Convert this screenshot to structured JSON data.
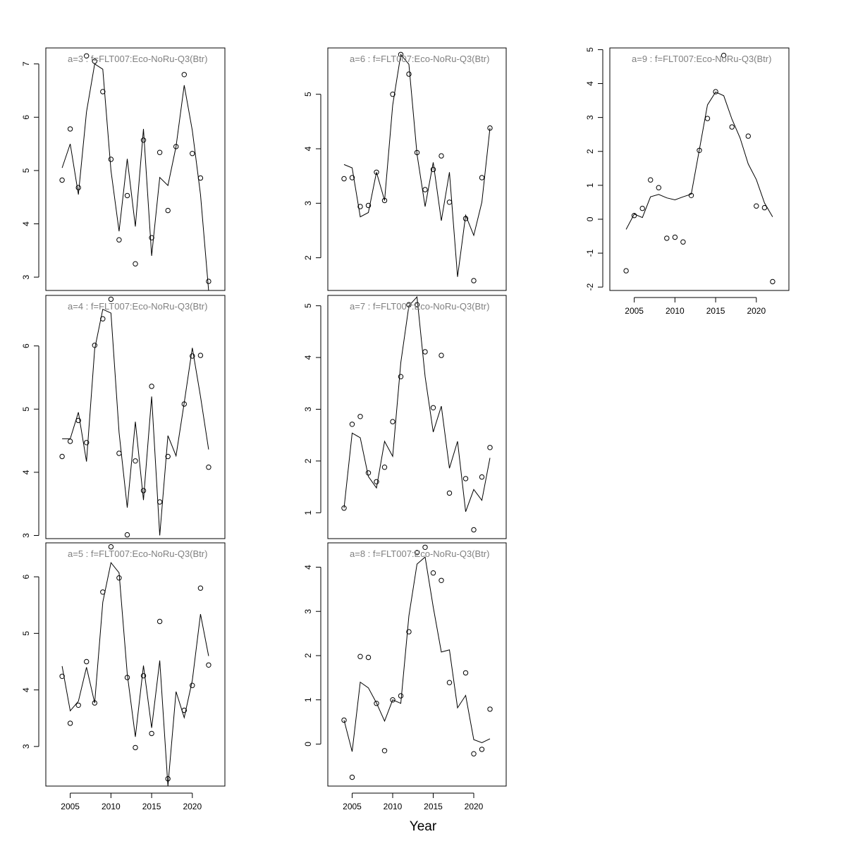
{
  "figure": {
    "xlabel": "Year"
  },
  "chart_data": [
    {
      "type": "scatter",
      "title": "a=3  :  f=FLT007:Eco-NoRu-Q3(Btr)",
      "xlim": [
        2002,
        2024
      ],
      "ylim": [
        2.75,
        7.3
      ],
      "yticks": [
        3,
        4,
        5,
        6,
        7
      ],
      "xticks": [
        2005,
        2010,
        2015,
        2020
      ],
      "show_xticks": false,
      "x": [
        2004,
        2005,
        2006,
        2007,
        2008,
        2009,
        2010,
        2011,
        2012,
        2013,
        2014,
        2015,
        2016,
        2017,
        2018,
        2019,
        2020,
        2021,
        2022
      ],
      "series": [
        {
          "name": "observed",
          "kind": "points",
          "values": [
            4.82,
            5.78,
            4.68,
            7.15,
            7.05,
            6.48,
            5.21,
            3.7,
            4.53,
            3.25,
            5.57,
            3.74,
            5.34,
            4.25,
            5.45,
            6.8,
            5.32,
            4.86,
            2.92
          ]
        },
        {
          "name": "fitted",
          "kind": "line",
          "values": [
            5.05,
            5.5,
            4.55,
            6.1,
            7.0,
            6.9,
            5.0,
            3.86,
            5.22,
            3.95,
            5.78,
            3.4,
            4.87,
            4.72,
            5.45,
            6.6,
            5.75,
            4.55,
            2.75
          ]
        }
      ]
    },
    {
      "type": "scatter",
      "title": "a=4  :  f=FLT007:Eco-NoRu-Q3(Btr)",
      "xlim": [
        2002,
        2024
      ],
      "ylim": [
        2.95,
        6.8
      ],
      "yticks": [
        3,
        4,
        5,
        6
      ],
      "xticks": [
        2005,
        2010,
        2015,
        2020
      ],
      "show_xticks": false,
      "x": [
        2004,
        2005,
        2006,
        2007,
        2008,
        2009,
        2010,
        2011,
        2012,
        2013,
        2014,
        2015,
        2016,
        2017,
        2018,
        2019,
        2020,
        2021,
        2022
      ],
      "series": [
        {
          "name": "observed",
          "kind": "points",
          "values": [
            4.25,
            4.49,
            4.82,
            4.47,
            6.01,
            6.43,
            6.74,
            4.3,
            3.01,
            4.18,
            3.71,
            5.36,
            3.53,
            4.25,
            null,
            5.08,
            5.84,
            5.85,
            4.08
          ]
        },
        {
          "name": "fitted",
          "kind": "line",
          "values": [
            4.53,
            4.53,
            4.95,
            4.17,
            5.95,
            6.58,
            6.52,
            4.63,
            3.44,
            4.8,
            3.56,
            5.2,
            3.0,
            4.58,
            4.26,
            5.1,
            5.97,
            5.2,
            4.36
          ]
        }
      ]
    },
    {
      "type": "scatter",
      "title": "a=5  :  f=FLT007:Eco-NoRu-Q3(Btr)",
      "xlim": [
        2002,
        2024
      ],
      "ylim": [
        2.3,
        6.6
      ],
      "yticks": [
        3,
        4,
        5,
        6
      ],
      "xticks": [
        2005,
        2010,
        2015,
        2020
      ],
      "show_xticks": true,
      "x": [
        2004,
        2005,
        2006,
        2007,
        2008,
        2009,
        2010,
        2011,
        2012,
        2013,
        2014,
        2015,
        2016,
        2017,
        2018,
        2019,
        2020,
        2021,
        2022
      ],
      "series": [
        {
          "name": "observed",
          "kind": "points",
          "values": [
            4.24,
            3.41,
            3.73,
            4.5,
            3.77,
            5.73,
            6.53,
            5.98,
            4.22,
            2.98,
            4.25,
            3.23,
            5.21,
            2.43,
            null,
            3.64,
            4.08,
            5.8,
            4.44
          ]
        },
        {
          "name": "fitted",
          "kind": "line",
          "values": [
            4.42,
            3.63,
            3.8,
            4.4,
            3.77,
            5.55,
            6.25,
            6.07,
            4.28,
            3.17,
            4.43,
            3.33,
            4.52,
            2.3,
            3.97,
            3.51,
            4.17,
            5.34,
            4.6
          ]
        }
      ]
    },
    {
      "type": "scatter",
      "title": "a=6  :  f=FLT007:Eco-NoRu-Q3(Btr)",
      "xlim": [
        2002,
        2024
      ],
      "ylim": [
        1.4,
        5.85
      ],
      "yticks": [
        2,
        3,
        4,
        5
      ],
      "xticks": [
        2005,
        2010,
        2015,
        2020
      ],
      "show_xticks": false,
      "x": [
        2004,
        2005,
        2006,
        2007,
        2008,
        2009,
        2010,
        2011,
        2012,
        2013,
        2014,
        2015,
        2016,
        2017,
        2018,
        2019,
        2020,
        2021,
        2022
      ],
      "series": [
        {
          "name": "observed",
          "kind": "points",
          "values": [
            3.45,
            3.47,
            2.94,
            2.96,
            3.57,
            3.05,
            5.0,
            5.73,
            5.37,
            3.93,
            3.25,
            3.62,
            3.87,
            3.02,
            null,
            2.72,
            1.58,
            3.47,
            4.38
          ]
        },
        {
          "name": "fitted",
          "kind": "line",
          "values": [
            3.71,
            3.65,
            2.75,
            2.83,
            3.57,
            3.05,
            4.8,
            5.73,
            5.55,
            3.9,
            2.94,
            3.75,
            2.68,
            3.57,
            1.65,
            2.78,
            2.41,
            3.02,
            4.38
          ]
        }
      ]
    },
    {
      "type": "scatter",
      "title": "a=7  :  f=FLT007:Eco-NoRu-Q3(Btr)",
      "xlim": [
        2002,
        2024
      ],
      "ylim": [
        0.5,
        5.2
      ],
      "yticks": [
        1,
        2,
        3,
        4,
        5
      ],
      "xticks": [
        2005,
        2010,
        2015,
        2020
      ],
      "show_xticks": false,
      "x": [
        2004,
        2005,
        2006,
        2007,
        2008,
        2009,
        2010,
        2011,
        2012,
        2013,
        2014,
        2015,
        2016,
        2017,
        2018,
        2019,
        2020,
        2021,
        2022
      ],
      "series": [
        {
          "name": "observed",
          "kind": "points",
          "values": [
            1.09,
            2.71,
            2.86,
            1.77,
            1.6,
            1.88,
            2.76,
            3.63,
            5.02,
            5.02,
            4.11,
            3.03,
            4.04,
            1.38,
            null,
            1.66,
            0.67,
            1.69,
            2.26
          ]
        },
        {
          "name": "fitted",
          "kind": "line",
          "values": [
            1.09,
            2.54,
            2.45,
            1.7,
            1.48,
            2.38,
            2.09,
            3.9,
            5.0,
            5.17,
            3.63,
            2.56,
            3.06,
            1.86,
            2.38,
            1.02,
            1.45,
            1.24,
            2.06
          ]
        }
      ]
    },
    {
      "type": "scatter",
      "title": "a=8  :  f=FLT007:Eco-NoRu-Q3(Btr)",
      "xlim": [
        2002,
        2024
      ],
      "ylim": [
        -0.95,
        4.55
      ],
      "yticks": [
        0,
        1,
        2,
        3,
        4
      ],
      "xticks": [
        2005,
        2010,
        2015,
        2020
      ],
      "show_xticks": true,
      "x": [
        2004,
        2005,
        2006,
        2007,
        2008,
        2009,
        2010,
        2011,
        2012,
        2013,
        2014,
        2015,
        2016,
        2017,
        2018,
        2019,
        2020,
        2021,
        2022
      ],
      "series": [
        {
          "name": "observed",
          "kind": "points",
          "values": [
            0.54,
            -0.75,
            1.98,
            1.96,
            0.92,
            -0.15,
            1.0,
            1.09,
            2.54,
            4.33,
            4.45,
            3.87,
            3.7,
            1.39,
            null,
            1.61,
            -0.22,
            -0.12,
            0.79
          ]
        },
        {
          "name": "fitted",
          "kind": "line",
          "values": [
            0.54,
            -0.17,
            1.4,
            1.27,
            0.93,
            0.52,
            1.0,
            0.92,
            2.9,
            4.07,
            4.23,
            3.1,
            2.08,
            2.13,
            0.82,
            1.1,
            0.1,
            0.03,
            0.12
          ]
        }
      ]
    },
    {
      "type": "scatter",
      "title": "a=9  :  f=FLT007:Eco-NoRu-Q3(Btr)",
      "xlim": [
        2002,
        2024
      ],
      "ylim": [
        -2.1,
        5.05
      ],
      "yticks": [
        -2,
        -1,
        0,
        1,
        2,
        3,
        4,
        5
      ],
      "xticks": [
        2005,
        2010,
        2015,
        2020
      ],
      "show_xticks": true,
      "x": [
        2004,
        2005,
        2006,
        2007,
        2008,
        2009,
        2010,
        2011,
        2012,
        2013,
        2014,
        2015,
        2016,
        2017,
        2018,
        2019,
        2020,
        2021,
        2022
      ],
      "series": [
        {
          "name": "observed",
          "kind": "points",
          "values": [
            -1.52,
            0.11,
            0.32,
            1.16,
            0.93,
            -0.56,
            -0.53,
            -0.67,
            0.7,
            2.03,
            2.97,
            3.76,
            4.83,
            2.72,
            null,
            2.45,
            0.39,
            0.34,
            -1.84
          ]
        },
        {
          "name": "fitted",
          "kind": "line",
          "values": [
            -0.3,
            0.15,
            0.05,
            0.66,
            0.73,
            0.63,
            0.57,
            0.66,
            0.74,
            2.05,
            3.37,
            3.75,
            3.64,
            2.95,
            2.4,
            1.63,
            1.17,
            0.48,
            0.07
          ]
        }
      ]
    }
  ]
}
